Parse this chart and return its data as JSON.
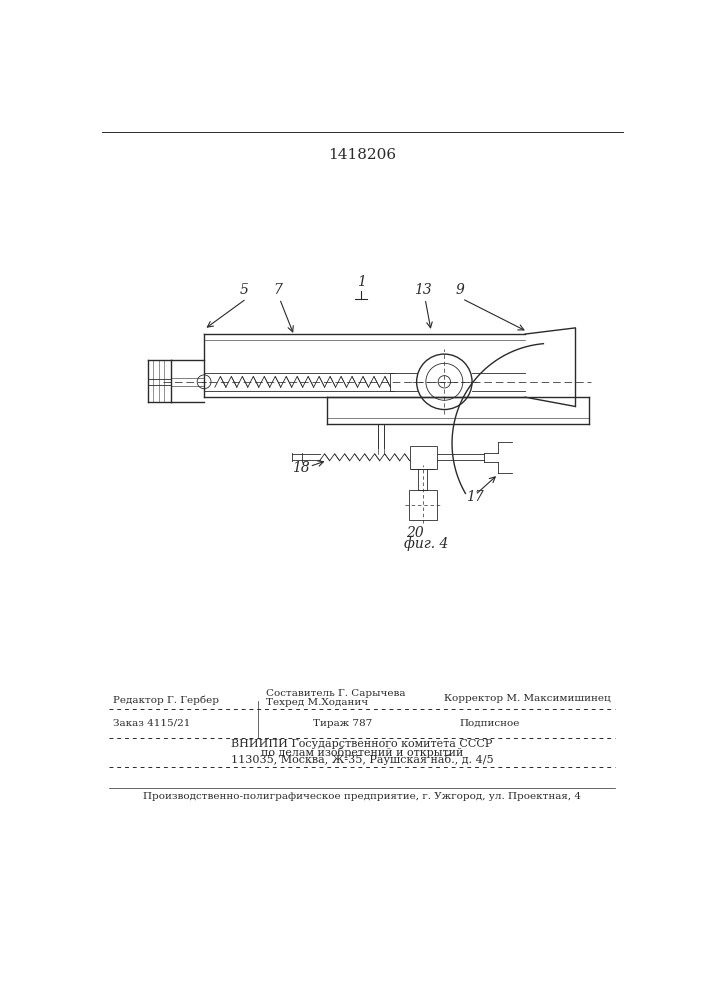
{
  "patent_number": "1418206",
  "fig_label": "фиг. 4",
  "bg_color": "#ffffff",
  "line_color": "#2a2a2a",
  "footer": {
    "editor": "Редактор Г. Гербер",
    "composer_line1": "Составитель Г. Сарычева",
    "composer_line2": "Техред М.Ходанич",
    "corrector": "Корректор М. Максимишинец",
    "order": "Заказ 4115/21",
    "tirazh": "Тираж 787",
    "podpisnoe": "Подписное",
    "vniipи": "ВНИИПИ Государственного комитета СССР",
    "po_delam": "по делам изобретений и открытий",
    "address": "113035, Москва, Ж-35, Раушская наб., д. 4/5",
    "uggorod": "Производственно-полиграфическое предприятие, г. Ужгород, ул. Проектная, 4"
  }
}
